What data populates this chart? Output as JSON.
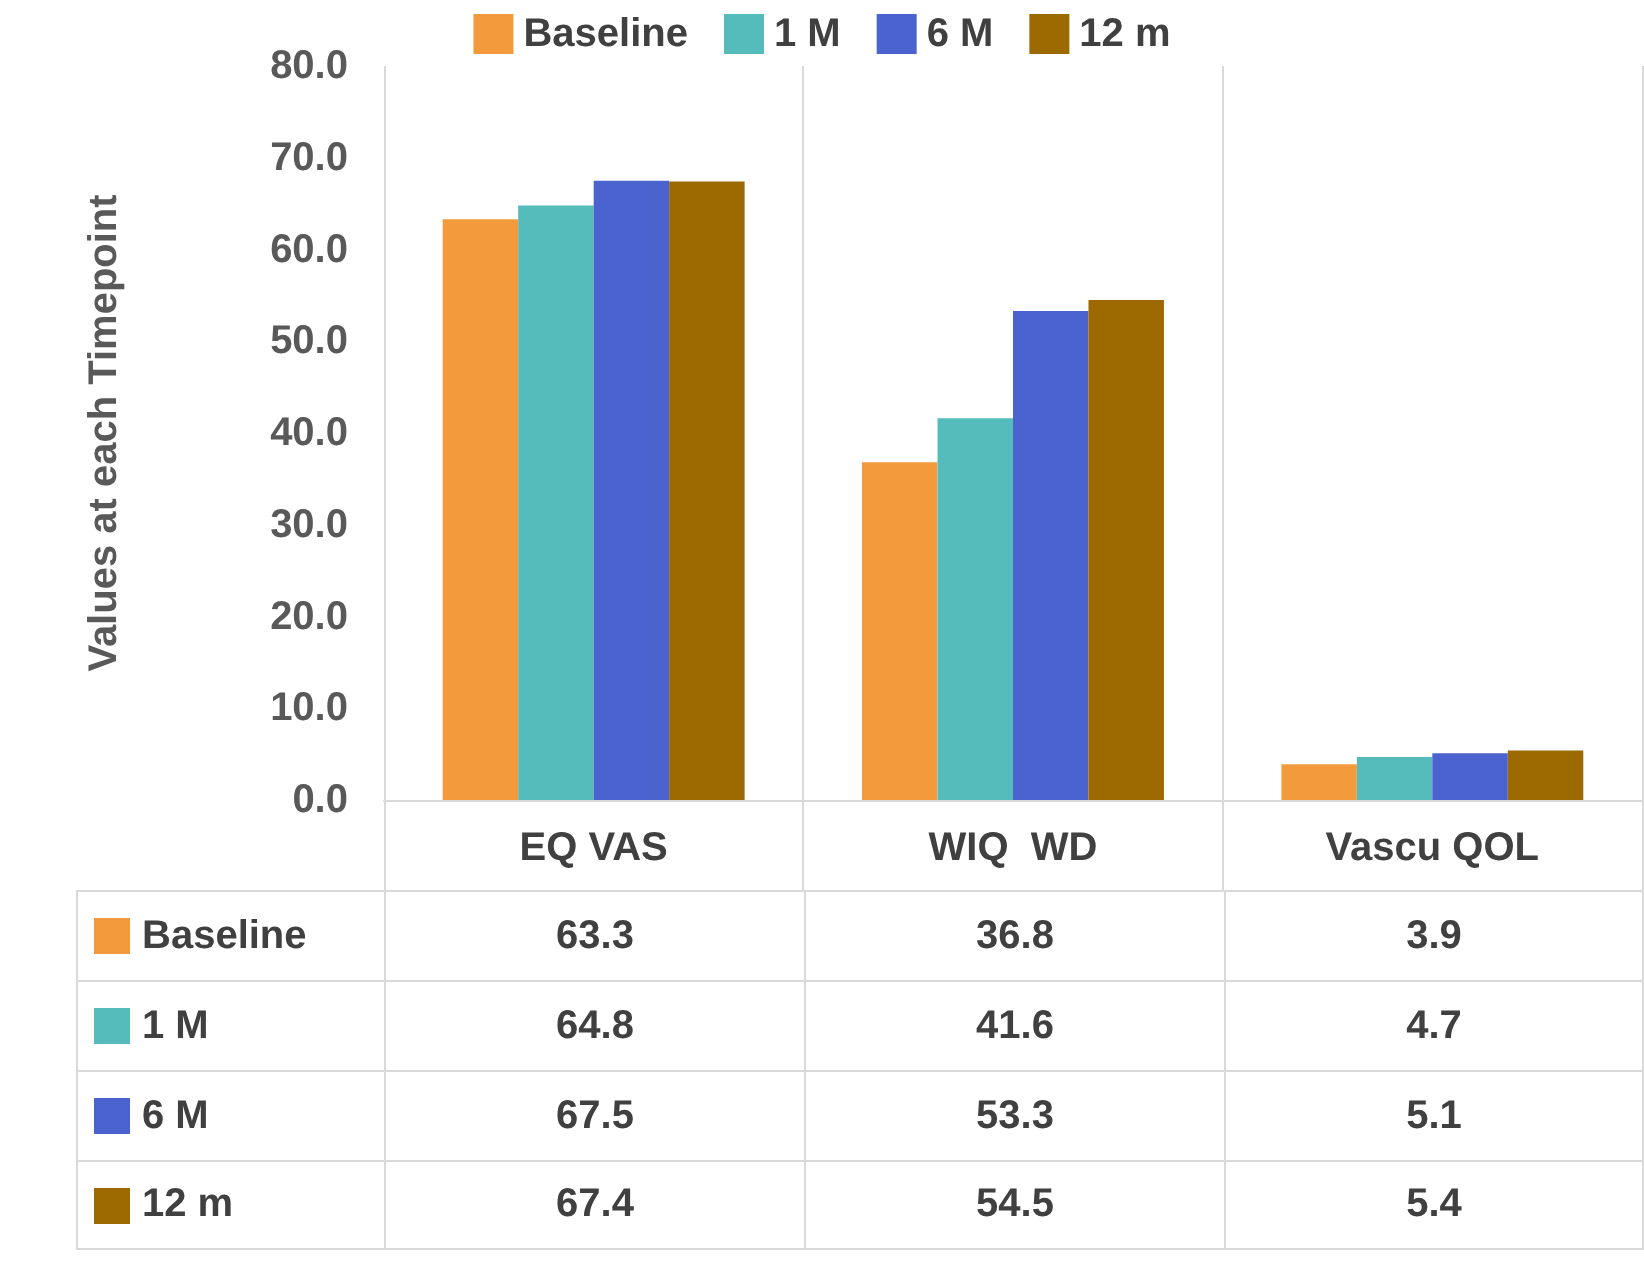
{
  "chart_data": {
    "type": "bar",
    "ylabel": "Values at each Timepoint",
    "categories": [
      "EQ VAS",
      "WIQ  WD",
      "Vascu QOL"
    ],
    "series": [
      {
        "name": "Baseline",
        "color": "#f39a3c",
        "values": [
          63.3,
          36.8,
          3.9
        ]
      },
      {
        "name": "1 M",
        "color": "#56bbbb",
        "values": [
          64.8,
          41.6,
          4.7
        ]
      },
      {
        "name": "6 M",
        "color": "#4a63cf",
        "values": [
          67.5,
          53.3,
          5.1
        ]
      },
      {
        "name": "12 m",
        "color": "#9c6a00",
        "values": [
          67.4,
          54.5,
          5.4
        ]
      }
    ],
    "ylim": [
      0,
      80
    ],
    "yticks": [
      {
        "value": 0,
        "label": "0.0"
      },
      {
        "value": 10,
        "label": "10.0"
      },
      {
        "value": 20,
        "label": "20.0"
      },
      {
        "value": 30,
        "label": "30.0"
      },
      {
        "value": 40,
        "label": "40.0"
      },
      {
        "value": 50,
        "label": "50.0"
      },
      {
        "value": 60,
        "label": "60.0"
      },
      {
        "value": 70,
        "label": "70.0"
      },
      {
        "value": 80,
        "label": "80.0"
      }
    ],
    "grid": "x",
    "legend": "top",
    "data_labels": true
  }
}
